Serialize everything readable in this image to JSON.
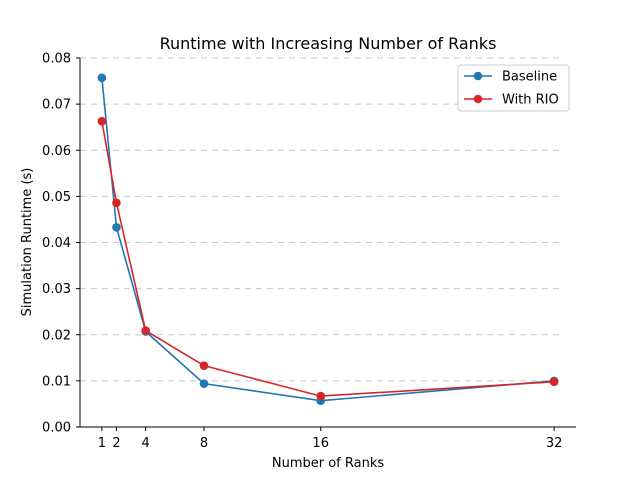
{
  "chart_data": {
    "type": "line",
    "title": "Runtime with Increasing Number of Ranks",
    "xlabel": "Number of Ranks",
    "ylabel": "Simulation Runtime (s)",
    "xlim": [
      -0.5,
      33.5
    ],
    "ylim": [
      0,
      0.08
    ],
    "x_ticks": [
      1,
      2,
      4,
      8,
      16,
      32
    ],
    "y_ticks": [
      "0.00",
      "0.01",
      "0.02",
      "0.03",
      "0.04",
      "0.05",
      "0.06",
      "0.07",
      "0.08"
    ],
    "grid": "horizontal-dashed",
    "legend_position": "top-right",
    "series": [
      {
        "name": "Baseline",
        "color": "#1f77b4",
        "x": [
          1,
          2,
          4,
          8,
          16,
          32
        ],
        "values": [
          0.0757,
          0.0433,
          0.0207,
          0.0094,
          0.0057,
          0.01
        ]
      },
      {
        "name": "With RIO",
        "color": "#d62728",
        "x": [
          1,
          2,
          4,
          8,
          16,
          32
        ],
        "values": [
          0.0663,
          0.0486,
          0.0209,
          0.0133,
          0.0067,
          0.0098
        ]
      }
    ]
  }
}
